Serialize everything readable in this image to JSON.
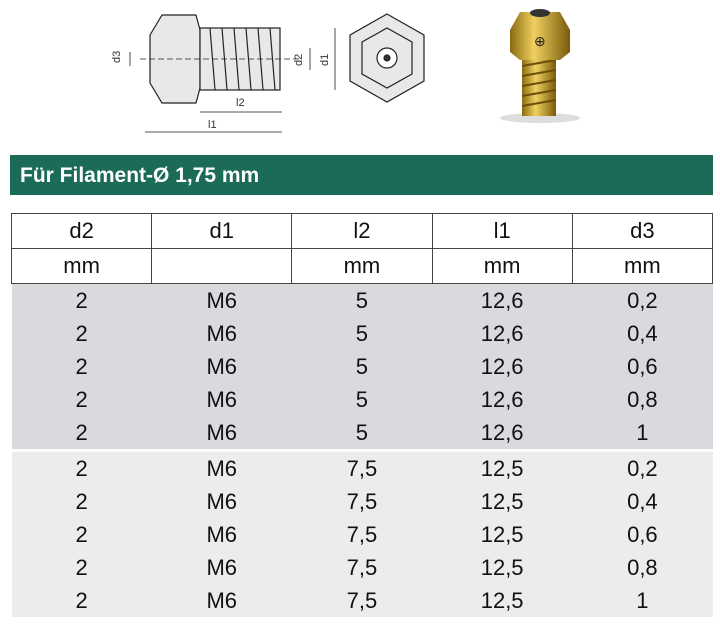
{
  "drawing": {
    "labels": [
      "d3",
      "d2",
      "d1",
      "l2",
      "l1"
    ]
  },
  "header": {
    "title": "Für Filament-Ø 1,75 mm"
  },
  "table": {
    "columns": [
      "d2",
      "d1",
      "l2",
      "l1",
      "d3"
    ],
    "units": [
      "mm",
      null,
      "mm",
      "mm",
      "mm"
    ],
    "groups": [
      [
        [
          "2",
          "M6",
          "5",
          "12,6",
          "0,2"
        ],
        [
          "2",
          "M6",
          "5",
          "12,6",
          "0,4"
        ],
        [
          "2",
          "M6",
          "5",
          "12,6",
          "0,6"
        ],
        [
          "2",
          "M6",
          "5",
          "12,6",
          "0,8"
        ],
        [
          "2",
          "M6",
          "5",
          "12,6",
          "1"
        ]
      ],
      [
        [
          "2",
          "M6",
          "7,5",
          "12,5",
          "0,2"
        ],
        [
          "2",
          "M6",
          "7,5",
          "12,5",
          "0,4"
        ],
        [
          "2",
          "M6",
          "7,5",
          "12,5",
          "0,6"
        ],
        [
          "2",
          "M6",
          "7,5",
          "12,5",
          "0,8"
        ],
        [
          "2",
          "M6",
          "7,5",
          "12,5",
          "1"
        ]
      ]
    ]
  }
}
